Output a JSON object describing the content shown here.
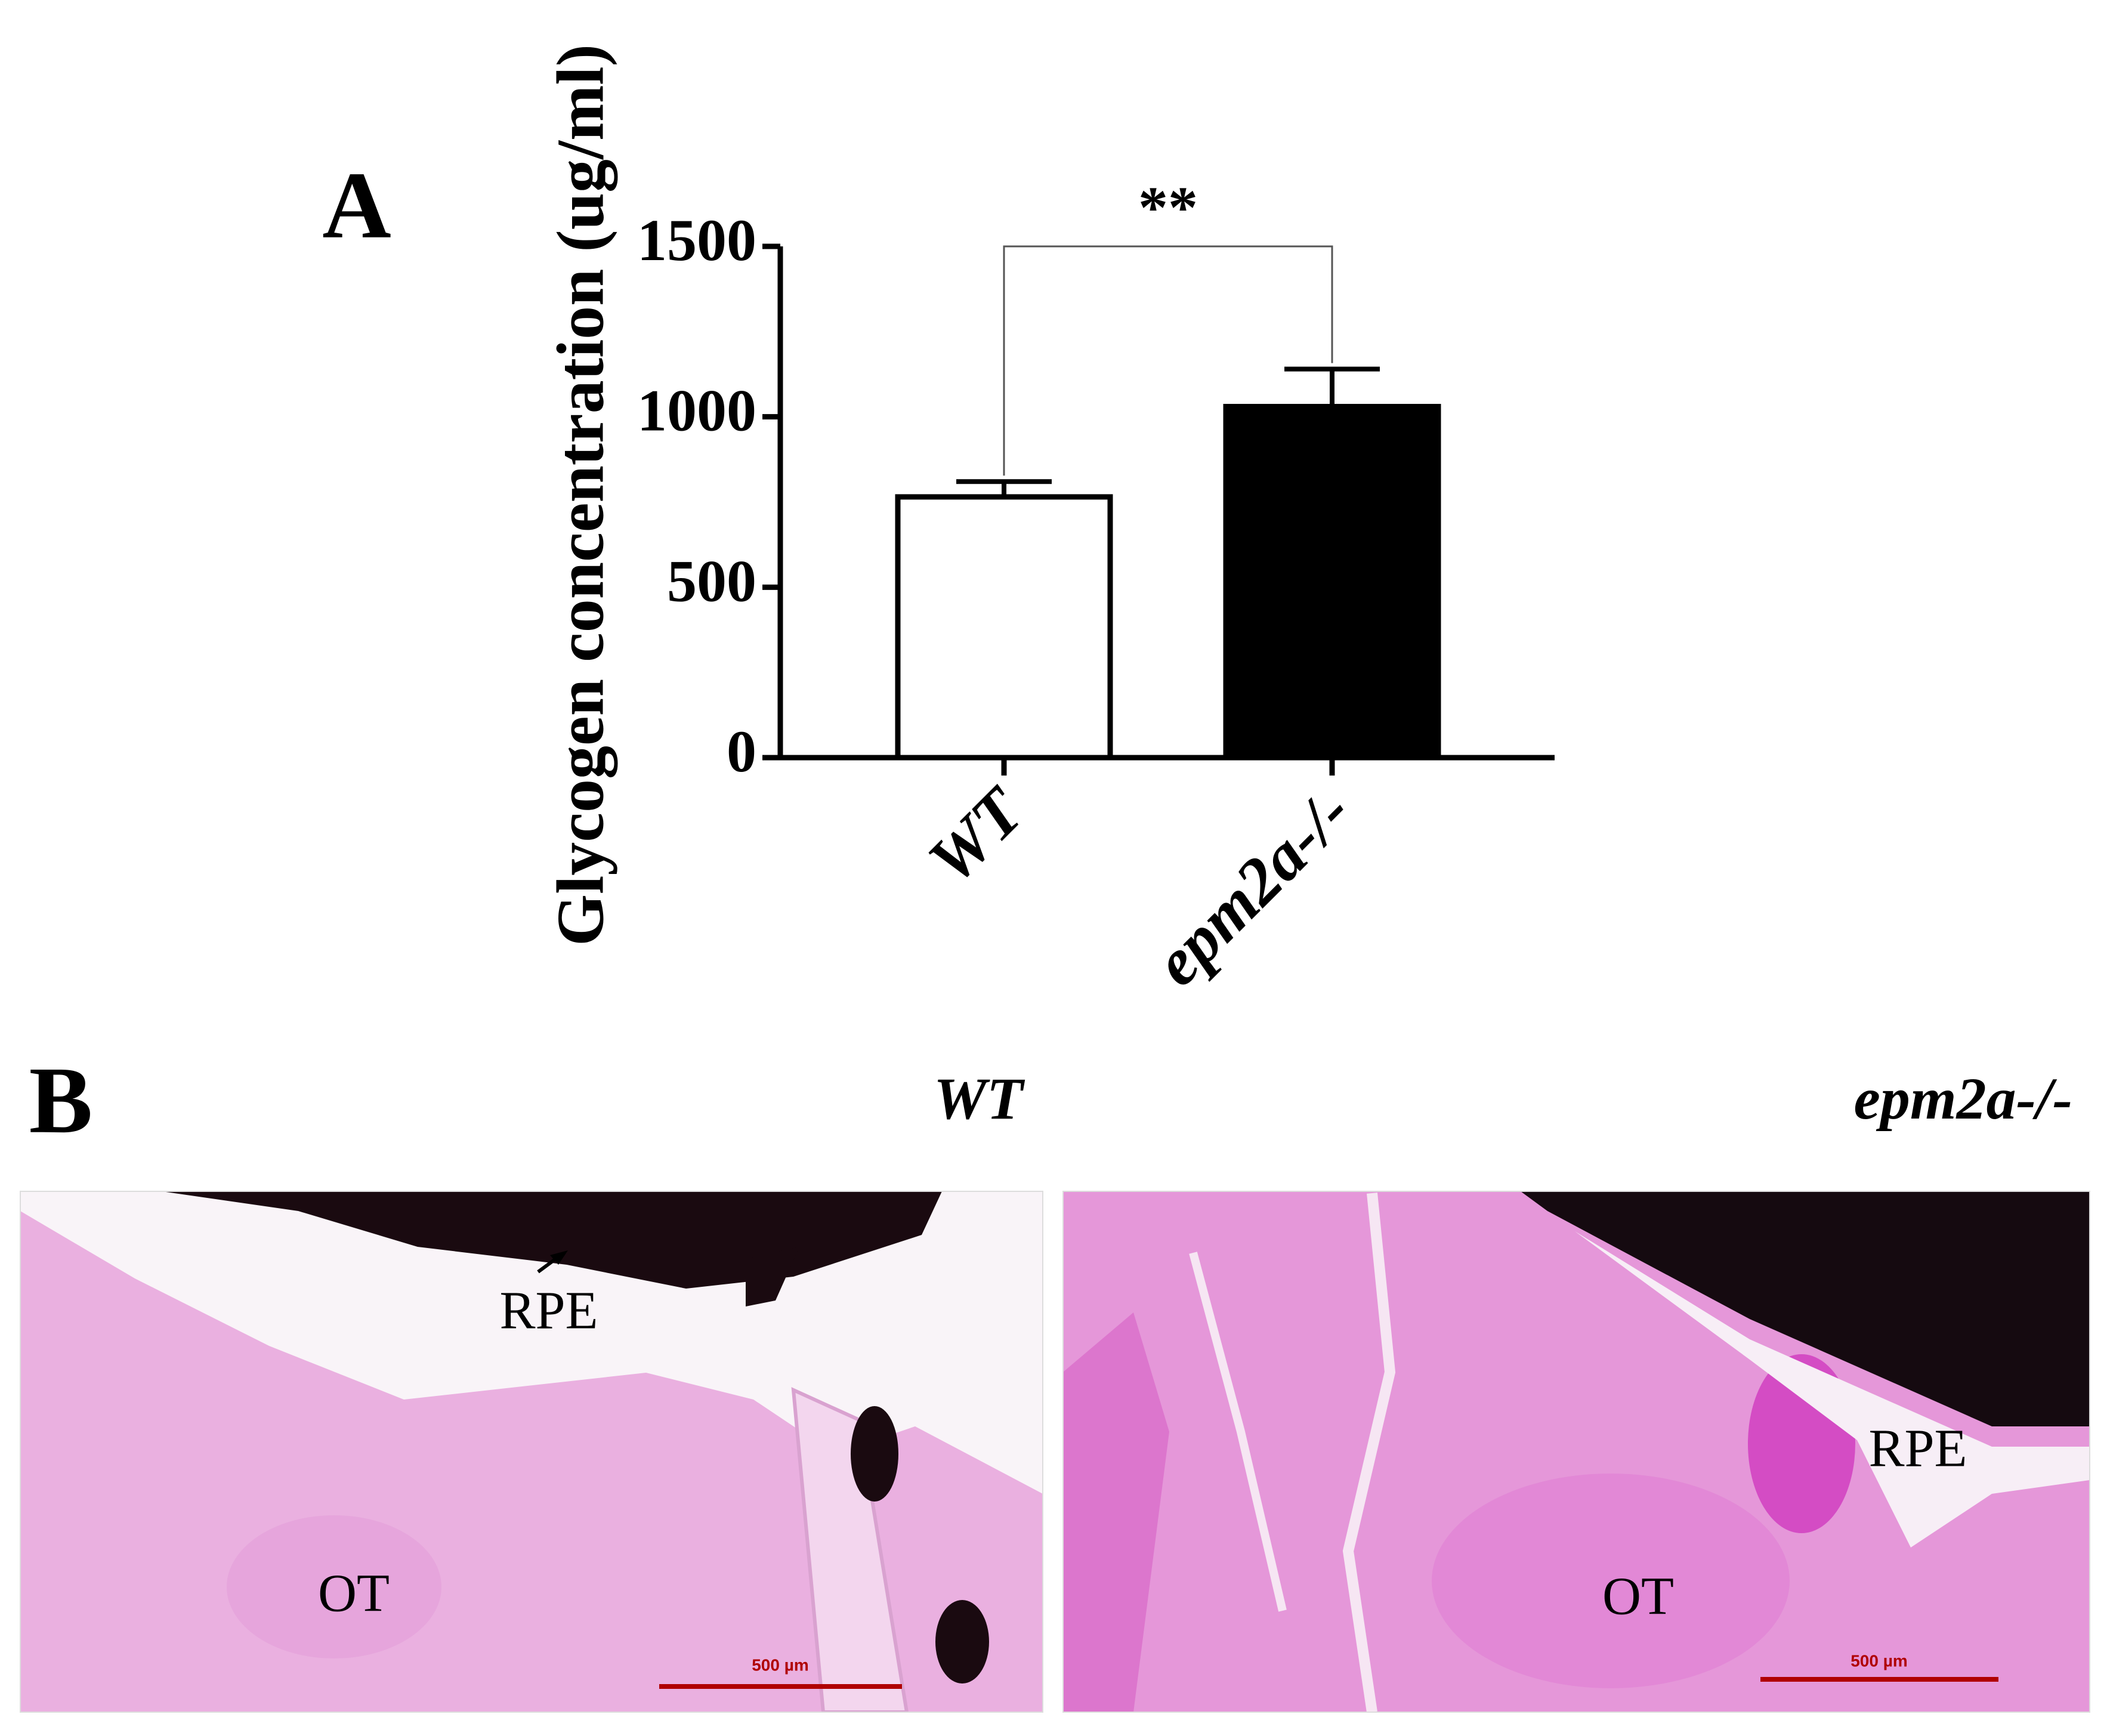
{
  "chart_data": {
    "type": "bar",
    "panel_label": "A",
    "y_label": "Glycogen concentration (ug/ml)",
    "categories": [
      "WT",
      "epm2a-/-"
    ],
    "values": [
      765,
      1030
    ],
    "errors": [
      45,
      110
    ],
    "colors": [
      "#ffffff",
      "#000000"
    ],
    "edge_color": "#000000",
    "ylim": [
      0,
      1500
    ],
    "yticks": [
      0,
      500,
      1000,
      1500
    ],
    "grid": false,
    "significance": "**"
  },
  "panel_b": {
    "label": "B",
    "images": [
      {
        "title": "WT",
        "labels": [
          "RPE",
          "OT"
        ],
        "scale_bar": "500 µm"
      },
      {
        "title": "epm2a-/-",
        "labels": [
          "RPE",
          "OT"
        ],
        "scale_bar": "500 µm"
      }
    ]
  }
}
